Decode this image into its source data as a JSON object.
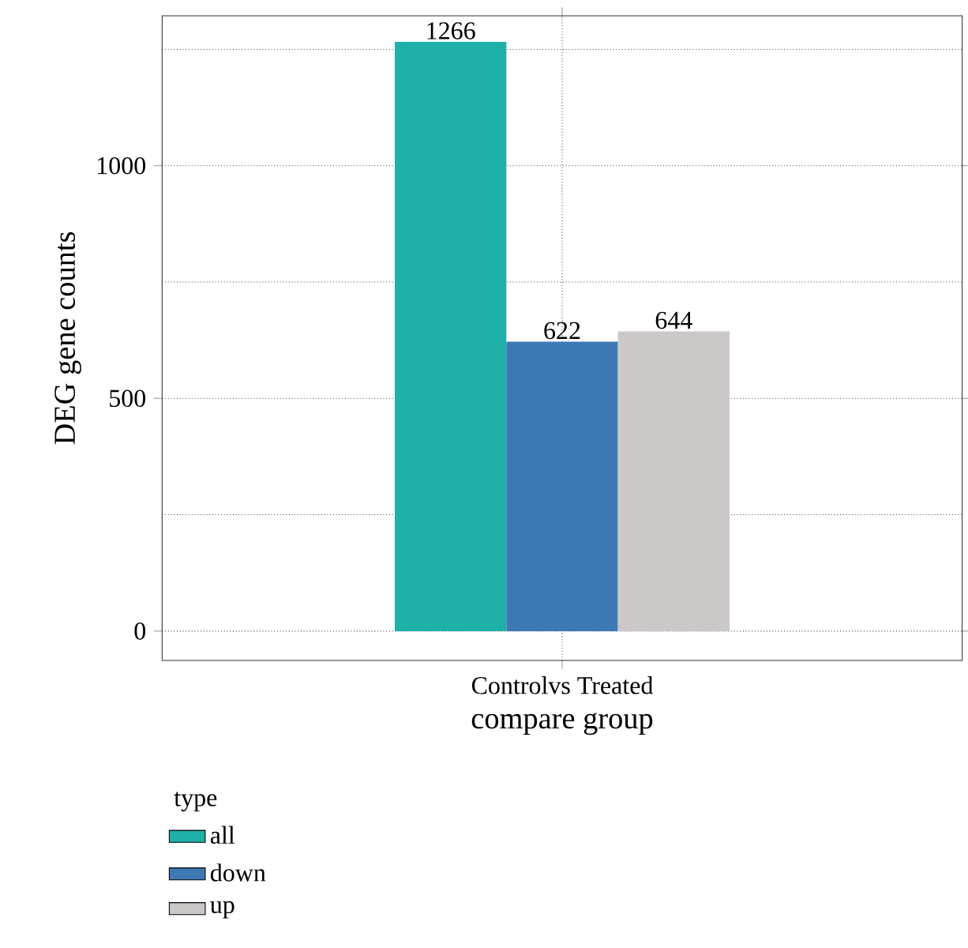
{
  "chart_data": {
    "type": "bar",
    "xlabel": "compare group",
    "ylabel": "DEG gene counts",
    "legend_title": "type",
    "categories": [
      "Controlvs Treated"
    ],
    "series": [
      {
        "name": "all",
        "color": "#1fb0a8",
        "values": [
          1266
        ]
      },
      {
        "name": "down",
        "color": "#3d7ab4",
        "values": [
          622
        ]
      },
      {
        "name": "up",
        "color": "#cbc8c7",
        "values": [
          644
        ]
      }
    ],
    "ylim": [
      -63,
      1322
    ],
    "yticks": [
      0,
      {
        "value": 250,
        "label": null
      },
      500,
      {
        "value": 750,
        "label": null
      },
      1000,
      {
        "value": 1250,
        "label": null
      }
    ],
    "grid": true,
    "legend": "bottom left",
    "data_labels": true
  }
}
